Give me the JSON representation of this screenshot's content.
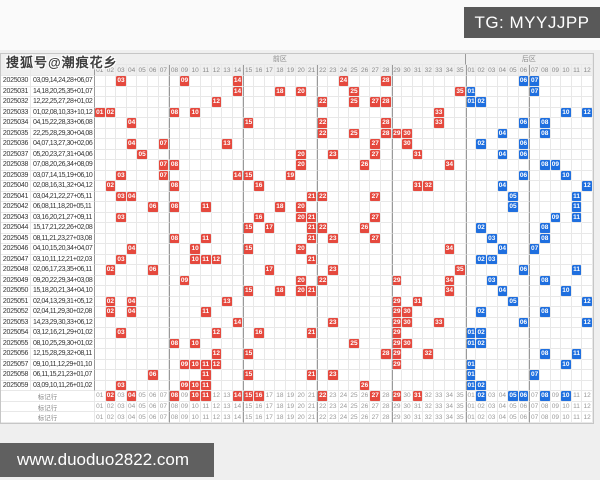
{
  "header": {
    "tg_badge": "TG: MYYJJPP"
  },
  "watermarks": {
    "sohu": "搜狐号@潮痕花乡",
    "site": "www.duoduo2822.com"
  },
  "chart_data": {
    "type": "table",
    "front_label": "前区",
    "back_label": "后区",
    "front_count": 35,
    "back_count": 12,
    "front_group_size": 7,
    "back_group_size": 6,
    "colors": {
      "front_hit": "#e5493e",
      "back_hit": "#1f6fdf"
    },
    "draws": [
      {
        "period": "2025030",
        "combo": "03,09,14,24,28+06,07",
        "front": [
          3,
          9,
          14,
          24,
          28
        ],
        "back": [
          6,
          7
        ]
      },
      {
        "period": "2025031",
        "combo": "14,18,20,25,35+01,07",
        "front": [
          14,
          18,
          20,
          25,
          35
        ],
        "back": [
          1,
          7
        ]
      },
      {
        "period": "2025032",
        "combo": "12,22,25,27,28+01,02",
        "front": [
          12,
          22,
          25,
          27,
          28
        ],
        "back": [
          1,
          2
        ]
      },
      {
        "period": "2025033",
        "combo": "01,02,08,10,33+10,12",
        "front": [
          1,
          2,
          8,
          10,
          33
        ],
        "back": [
          10,
          12
        ]
      },
      {
        "period": "2025034",
        "combo": "04,15,22,28,33+06,08",
        "front": [
          4,
          15,
          22,
          28,
          33
        ],
        "back": [
          6,
          8
        ]
      },
      {
        "period": "2025035",
        "combo": "22,25,28,29,30+04,08",
        "front": [
          22,
          25,
          28,
          29,
          30
        ],
        "back": [
          4,
          8
        ]
      },
      {
        "period": "2025036",
        "combo": "04,07,13,27,30+02,06",
        "front": [
          4,
          7,
          13,
          27,
          30
        ],
        "back": [
          2,
          6
        ]
      },
      {
        "period": "2025037",
        "combo": "05,20,23,27,31+04,06",
        "front": [
          5,
          20,
          23,
          27,
          31
        ],
        "back": [
          4,
          6
        ]
      },
      {
        "period": "2025038",
        "combo": "07,08,20,26,34+08,09",
        "front": [
          7,
          8,
          20,
          26,
          34
        ],
        "back": [
          8,
          9
        ]
      },
      {
        "period": "2025039",
        "combo": "03,07,14,15,19+06,10",
        "front": [
          3,
          7,
          14,
          15,
          19
        ],
        "back": [
          6,
          10
        ]
      },
      {
        "period": "2025040",
        "combo": "02,08,16,31,32+04,12",
        "front": [
          2,
          8,
          16,
          31,
          32
        ],
        "back": [
          4,
          12
        ]
      },
      {
        "period": "2025041",
        "combo": "03,04,21,22,27+05,11",
        "front": [
          3,
          4,
          21,
          22,
          27
        ],
        "back": [
          5,
          11
        ]
      },
      {
        "period": "2025042",
        "combo": "06,08,11,18,20+05,11",
        "front": [
          6,
          8,
          11,
          18,
          20
        ],
        "back": [
          5,
          11
        ]
      },
      {
        "period": "2025043",
        "combo": "03,16,20,21,27+09,11",
        "front": [
          3,
          16,
          20,
          21,
          27
        ],
        "back": [
          9,
          11
        ]
      },
      {
        "period": "2025044",
        "combo": "15,17,21,22,26+02,08",
        "front": [
          15,
          17,
          21,
          22,
          26
        ],
        "back": [
          2,
          8
        ]
      },
      {
        "period": "2025045",
        "combo": "08,11,21,23,27+03,08",
        "front": [
          8,
          11,
          21,
          23,
          27
        ],
        "back": [
          3,
          8
        ]
      },
      {
        "period": "2025046",
        "combo": "04,10,15,20,34+04,07",
        "front": [
          4,
          10,
          15,
          20,
          34
        ],
        "back": [
          4,
          7
        ]
      },
      {
        "period": "2025047",
        "combo": "03,10,11,12,21+02,03",
        "front": [
          3,
          10,
          11,
          12,
          21
        ],
        "back": [
          2,
          3
        ]
      },
      {
        "period": "2025048",
        "combo": "02,06,17,23,35+06,11",
        "front": [
          2,
          6,
          17,
          23,
          35
        ],
        "back": [
          6,
          11
        ]
      },
      {
        "period": "2025049",
        "combo": "09,20,22,29,34+03,08",
        "front": [
          9,
          20,
          22,
          29,
          34
        ],
        "back": [
          3,
          8
        ]
      },
      {
        "period": "2025050",
        "combo": "15,18,20,21,34+04,10",
        "front": [
          15,
          18,
          20,
          21,
          34
        ],
        "back": [
          4,
          10
        ]
      },
      {
        "period": "2025051",
        "combo": "02,04,13,29,31+05,12",
        "front": [
          2,
          4,
          13,
          29,
          31
        ],
        "back": [
          5,
          12
        ]
      },
      {
        "period": "2025052",
        "combo": "02,04,11,29,30+02,08",
        "front": [
          2,
          4,
          11,
          29,
          30
        ],
        "back": [
          2,
          8
        ]
      },
      {
        "period": "2025053",
        "combo": "14,23,29,30,33+06,12",
        "front": [
          14,
          23,
          29,
          30,
          33
        ],
        "back": [
          6,
          12
        ]
      },
      {
        "period": "2025054",
        "combo": "03,12,16,21,29+01,02",
        "front": [
          3,
          12,
          16,
          21,
          29
        ],
        "back": [
          1,
          2
        ]
      },
      {
        "period": "2025055",
        "combo": "08,10,25,29,30+01,02",
        "front": [
          8,
          10,
          25,
          29,
          30
        ],
        "back": [
          1,
          2
        ]
      },
      {
        "period": "2025056",
        "combo": "12,15,28,29,32+08,11",
        "front": [
          12,
          15,
          28,
          29,
          32
        ],
        "back": [
          8,
          11
        ]
      },
      {
        "period": "2025057",
        "combo": "09,10,11,12,29+01,10",
        "front": [
          9,
          10,
          11,
          12,
          29
        ],
        "back": [
          1,
          10
        ]
      },
      {
        "period": "2025058",
        "combo": "06,11,15,21,23+01,07",
        "front": [
          6,
          11,
          15,
          21,
          23
        ],
        "back": [
          1,
          7
        ]
      },
      {
        "period": "2025059",
        "combo": "03,09,10,11,26+01,02",
        "front": [
          3,
          9,
          10,
          11,
          26
        ],
        "back": [
          1,
          2
        ]
      }
    ],
    "marked_rows": [
      {
        "label": "标记行",
        "front": [
          2,
          4,
          8,
          10,
          11,
          14,
          15,
          16,
          22,
          27,
          29,
          31
        ],
        "back": [
          2,
          5,
          6,
          8,
          10
        ]
      },
      {
        "label": "标记行",
        "front": [],
        "back": []
      },
      {
        "label": "标记行",
        "front": [],
        "back": []
      }
    ]
  }
}
